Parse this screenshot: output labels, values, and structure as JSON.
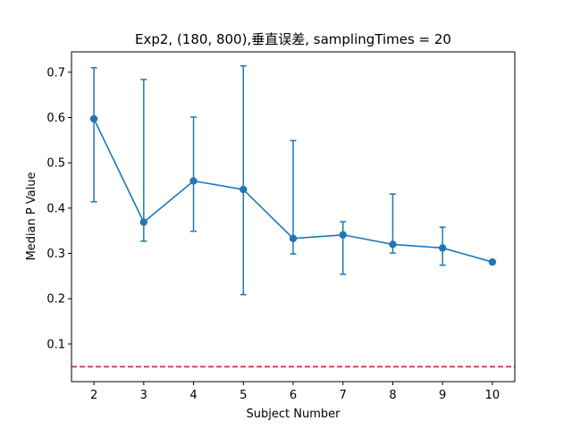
{
  "chart_data": {
    "type": "line",
    "title": "Exp2, (180, 800),垂直误差, samplingTimes = 20",
    "xlabel": "Subject Number",
    "ylabel": "Median P Value",
    "xlim": [
      1.55,
      10.45
    ],
    "ylim": [
      0.017,
      0.745
    ],
    "x_ticks": [
      "2",
      "3",
      "4",
      "5",
      "6",
      "7",
      "8",
      "9",
      "10"
    ],
    "y_ticks": [
      "0.1",
      "0.2",
      "0.3",
      "0.4",
      "0.5",
      "0.6",
      "0.7"
    ],
    "grid": false,
    "series": [
      {
        "color": "#1f77b4",
        "marker": "circle",
        "x": [
          2,
          3,
          4,
          5,
          6,
          7,
          8,
          9,
          10
        ],
        "y": [
          0.597,
          0.369,
          0.46,
          0.441,
          0.333,
          0.341,
          0.32,
          0.312,
          0.281
        ],
        "err_low": [
          0.414,
          0.327,
          0.349,
          0.209,
          0.299,
          0.254,
          0.301,
          0.274,
          0.281
        ],
        "err_high": [
          0.71,
          0.684,
          0.601,
          0.714,
          0.549,
          0.37,
          0.431,
          0.358,
          0.281
        ]
      }
    ],
    "reference_line": {
      "y": 0.05,
      "color": "#d62728",
      "style": "dashed"
    }
  }
}
